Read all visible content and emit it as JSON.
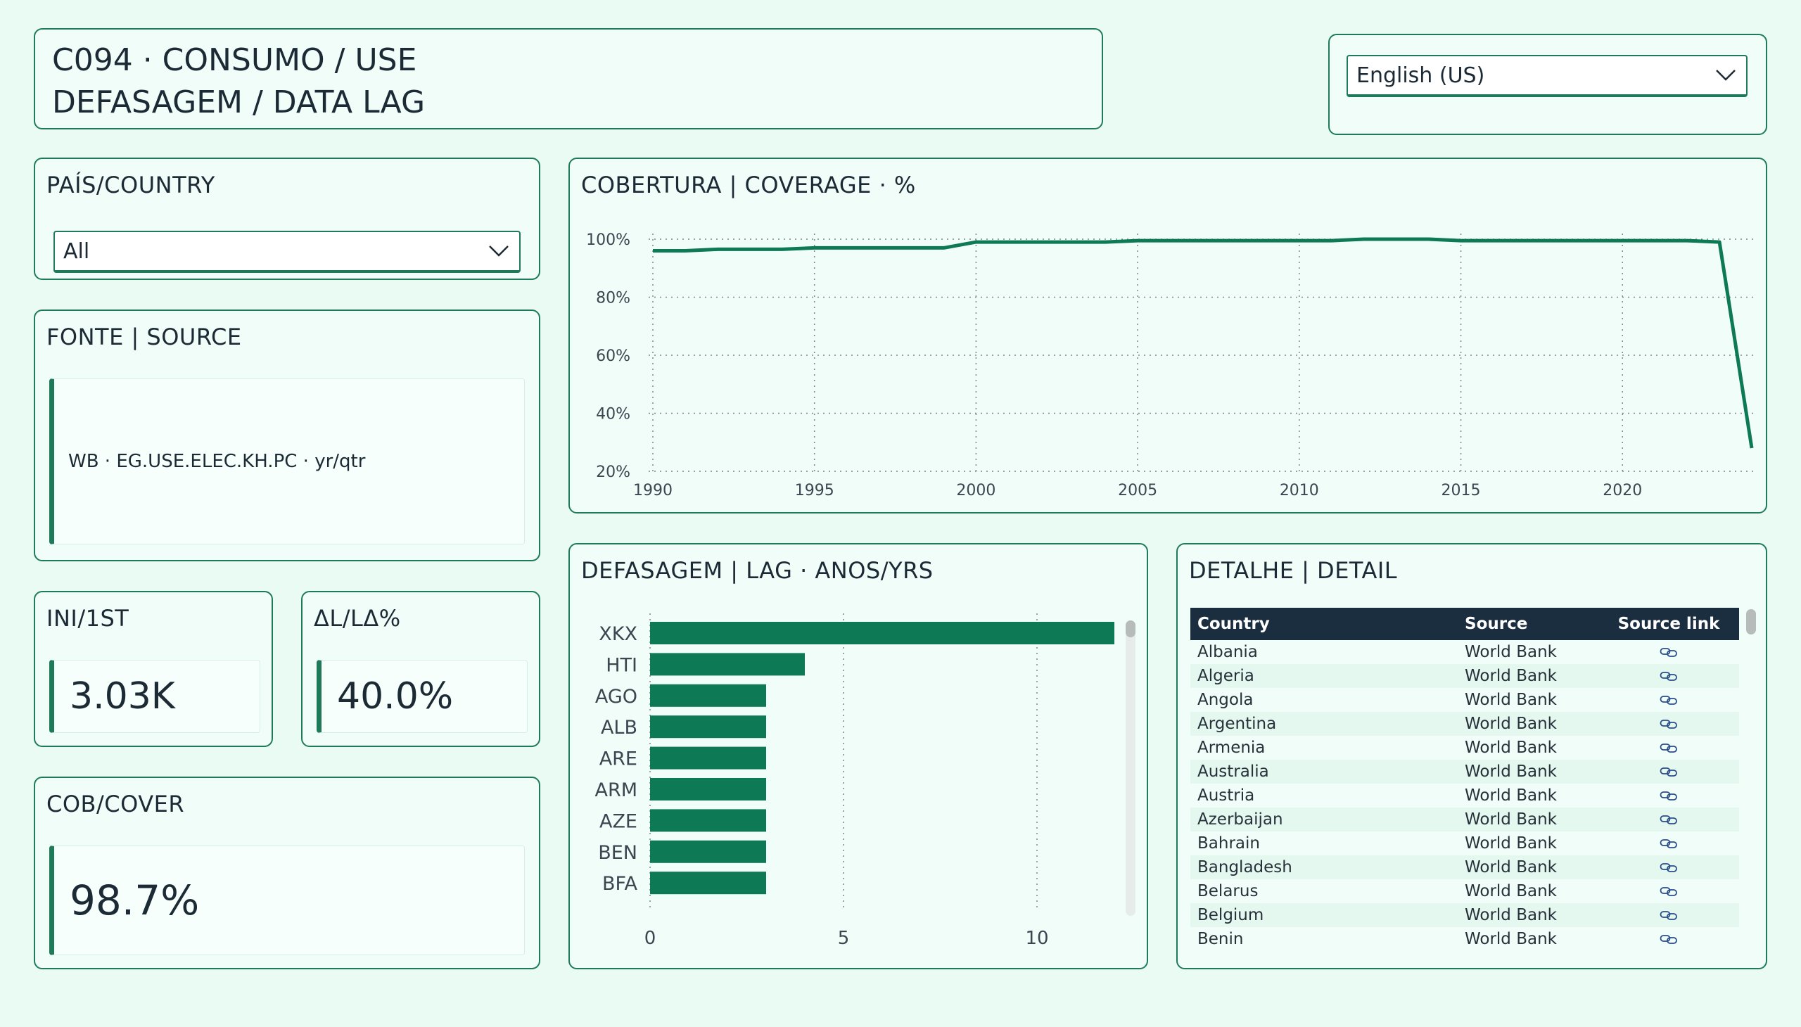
{
  "header": {
    "title_line1": "C094 · CONSUMO / USE",
    "title_line2": "DEFASAGEM / DATA LAG"
  },
  "language": {
    "selected": "English (US)"
  },
  "country_filter": {
    "title": "PAÍS/COUNTRY",
    "selected": "All"
  },
  "source_card": {
    "title": "FONTE | SOURCE",
    "text": "WB · EG.USE.ELEC.KH.PC · yr/qtr"
  },
  "kpi_first": {
    "title": "INI/1ST",
    "value": "3.03K"
  },
  "kpi_delta": {
    "title": "ΔL/LΔ%",
    "value": "40.0%"
  },
  "kpi_cover": {
    "title": "COB/COVER",
    "value": "98.7%"
  },
  "coverage_chart_title": "COBERTURA | COVERAGE · %",
  "lag_chart_title": "DEFASAGEM | LAG · ANOS/YRS",
  "detail": {
    "title": "DETALHE | DETAIL",
    "columns": [
      "Country",
      "Source",
      "Source link"
    ],
    "rows": [
      [
        "Albania",
        "World Bank"
      ],
      [
        "Algeria",
        "World Bank"
      ],
      [
        "Angola",
        "World Bank"
      ],
      [
        "Argentina",
        "World Bank"
      ],
      [
        "Armenia",
        "World Bank"
      ],
      [
        "Australia",
        "World Bank"
      ],
      [
        "Austria",
        "World Bank"
      ],
      [
        "Azerbaijan",
        "World Bank"
      ],
      [
        "Bahrain",
        "World Bank"
      ],
      [
        "Bangladesh",
        "World Bank"
      ],
      [
        "Belarus",
        "World Bank"
      ],
      [
        "Belgium",
        "World Bank"
      ],
      [
        "Benin",
        "World Bank"
      ]
    ],
    "link_icon": "link-icon"
  },
  "colors": {
    "accent": "#1f7a5a",
    "bar": "#0e7a55",
    "header_bg": "#1b2e40",
    "background": "#e9fbf3"
  },
  "chart_data": [
    {
      "type": "line",
      "title": "COBERTURA | COVERAGE · %",
      "x": [
        1990,
        1991,
        1992,
        1993,
        1994,
        1995,
        1996,
        1997,
        1998,
        1999,
        2000,
        2001,
        2002,
        2003,
        2004,
        2005,
        2006,
        2007,
        2008,
        2009,
        2010,
        2011,
        2012,
        2013,
        2014,
        2015,
        2016,
        2017,
        2018,
        2019,
        2020,
        2021,
        2022,
        2023,
        2024
      ],
      "series": [
        {
          "values": [
            96,
            96,
            96.5,
            96.5,
            96.5,
            97,
            97,
            97,
            97,
            97,
            99,
            99,
            99,
            99,
            99,
            99.5,
            99.5,
            99.5,
            99.5,
            99.5,
            99.5,
            99.5,
            100,
            100,
            100,
            99.5,
            99.5,
            99.5,
            99.5,
            99.5,
            99.5,
            99.5,
            99.5,
            99,
            28
          ]
        }
      ],
      "ylim": [
        20,
        100
      ],
      "yticks": [
        "100%",
        "80%",
        "60%",
        "40%",
        "20%"
      ],
      "xticks": [
        "1990",
        "1995",
        "2000",
        "2005",
        "2010",
        "2015",
        "2020"
      ],
      "grid": true
    },
    {
      "type": "bar",
      "orientation": "horizontal",
      "title": "DEFASAGEM | LAG · ANOS/YRS",
      "categories": [
        "XKX",
        "HTI",
        "AGO",
        "ALB",
        "ARE",
        "ARM",
        "AZE",
        "BEN",
        "BFA"
      ],
      "values": [
        12,
        4,
        3,
        3,
        3,
        3,
        3,
        3,
        3
      ],
      "xlim": [
        0,
        12
      ],
      "xticks": [
        "0",
        "5",
        "10"
      ],
      "grid": true
    }
  ]
}
